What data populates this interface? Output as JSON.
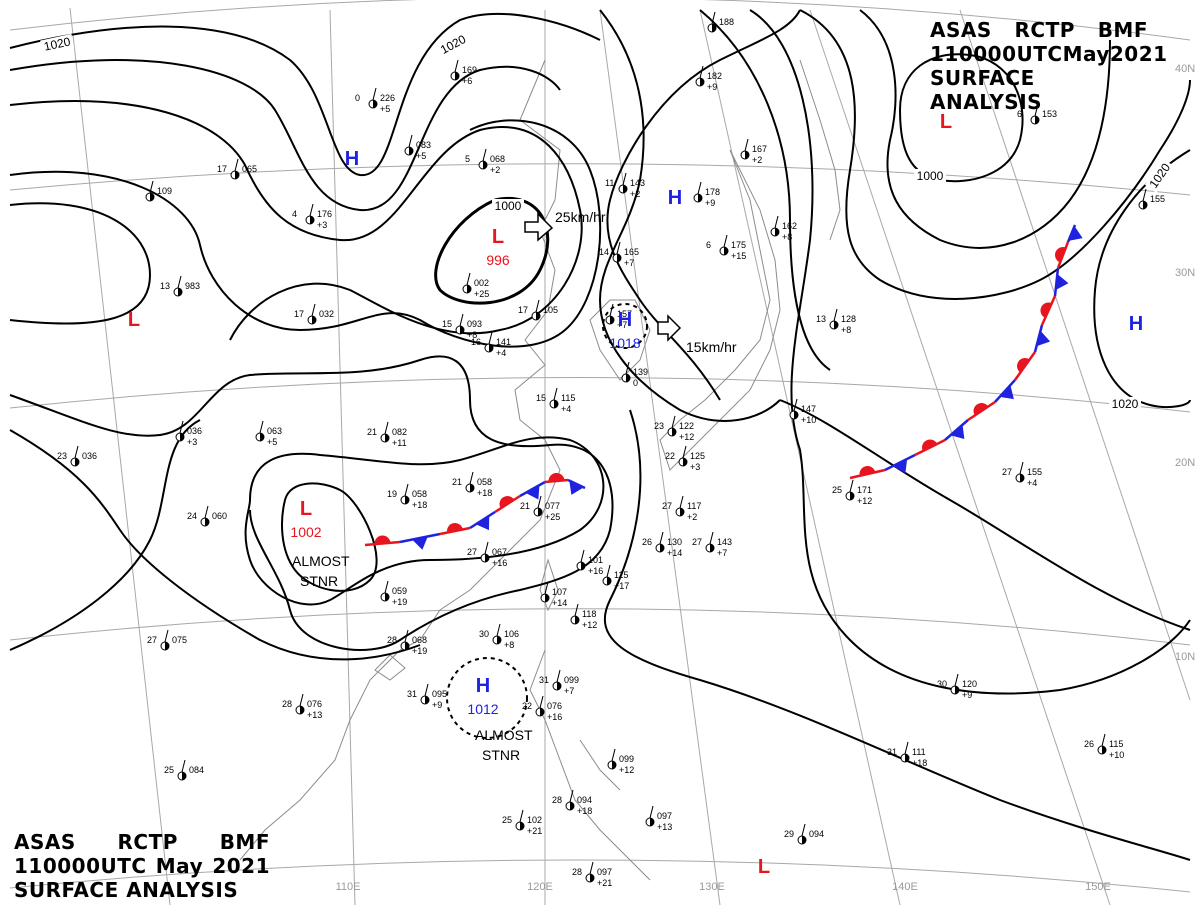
{
  "title": {
    "line1": [
      "ASAS",
      "RCTP",
      "BMF"
    ],
    "line2": [
      "110000UTC",
      "May",
      "2021"
    ],
    "line3": "SURFACE ANALYSIS"
  },
  "colors": {
    "high": "#1f23e0",
    "low": "#e8141e",
    "warm_front": "#e8141e",
    "cold_front": "#1f23e0",
    "isobar": "#000000",
    "grid": "#a8a8a8",
    "coast": "#8c8c8c"
  },
  "lon_labels": [
    "110E",
    "120E",
    "130E",
    "140E",
    "150E"
  ],
  "lat_labels": [
    "40N",
    "30N",
    "20N",
    "10N"
  ],
  "isobar_labels": [
    "1020",
    "1020",
    "1000",
    "1000",
    "1020",
    "1020"
  ],
  "pressure_systems": [
    {
      "type": "H",
      "value": ""
    },
    {
      "type": "H",
      "value": ""
    },
    {
      "type": "H",
      "value": "1018"
    },
    {
      "type": "H",
      "value": ""
    },
    {
      "type": "H",
      "value": "1012"
    },
    {
      "type": "L",
      "value": "996"
    },
    {
      "type": "L",
      "value": ""
    },
    {
      "type": "L",
      "value": "1002"
    },
    {
      "type": "L",
      "value": ""
    },
    {
      "type": "L",
      "value": ""
    }
  ],
  "annotations": {
    "motion_low": "25km/hr",
    "motion_high": "15km/hr",
    "stnr_low": [
      "ALMOST",
      "STNR"
    ],
    "stnr_high": [
      "ALMOST",
      "STNR"
    ]
  },
  "stations": [
    {
      "t": "226",
      "b": "+5",
      "l": "0"
    },
    {
      "t": "169",
      "b": "+6",
      "l": ""
    },
    {
      "t": "083",
      "b": "+5",
      "l": ""
    },
    {
      "t": "068",
      "b": "+2",
      "l": "5"
    },
    {
      "t": "176",
      "b": "+3",
      "l": "4"
    },
    {
      "t": "109",
      "b": "",
      "l": ""
    },
    {
      "t": "065",
      "b": "",
      "l": "17"
    },
    {
      "t": "983",
      "b": "",
      "l": "13"
    },
    {
      "t": "032",
      "b": "",
      "l": "17"
    },
    {
      "t": "002",
      "b": "+25",
      "l": ""
    },
    {
      "t": "093",
      "b": "+8",
      "l": "15"
    },
    {
      "t": "105",
      "b": "",
      "l": "17"
    },
    {
      "t": "141",
      "b": "+4",
      "l": "16"
    },
    {
      "t": "143",
      "b": "+2",
      "l": "11"
    },
    {
      "t": "178",
      "b": "+9",
      "l": ""
    },
    {
      "t": "175",
      "b": "+15",
      "l": "6"
    },
    {
      "t": "162",
      "b": "+8",
      "l": ""
    },
    {
      "t": "167",
      "b": "+2",
      "l": ""
    },
    {
      "t": "182",
      "b": "+9",
      "l": ""
    },
    {
      "t": "188",
      "b": "",
      "l": ""
    },
    {
      "t": "153",
      "b": "",
      "l": "6"
    },
    {
      "t": "155",
      "b": "",
      "l": ""
    },
    {
      "t": "128",
      "b": "+8",
      "l": "13"
    },
    {
      "t": "147",
      "b": "+10",
      "l": ""
    },
    {
      "t": "139",
      "b": "0",
      "l": ""
    },
    {
      "t": "157",
      "b": "+7",
      "l": ""
    },
    {
      "t": "165",
      "b": "+7",
      "l": "14"
    },
    {
      "t": "036",
      "b": "+3",
      "l": ""
    },
    {
      "t": "036",
      "b": "",
      "l": "23"
    },
    {
      "t": "063",
      "b": "+5",
      "l": ""
    },
    {
      "t": "082",
      "b": "+11",
      "l": "21"
    },
    {
      "t": "058",
      "b": "+18",
      "l": "21"
    },
    {
      "t": "058",
      "b": "+18",
      "l": "19"
    },
    {
      "t": "077",
      "b": "+25",
      "l": "21"
    },
    {
      "t": "115",
      "b": "+4",
      "l": "15"
    },
    {
      "t": "067",
      "b": "+16",
      "l": "27"
    },
    {
      "t": "060",
      "b": "",
      "l": "24"
    },
    {
      "t": "059",
      "b": "+19",
      "l": ""
    },
    {
      "t": "068",
      "b": "+19",
      "l": "28"
    },
    {
      "t": "075",
      "b": "",
      "l": "27"
    },
    {
      "t": "076",
      "b": "+13",
      "l": "28"
    },
    {
      "t": "095",
      "b": "+9",
      "l": "31"
    },
    {
      "t": "106",
      "b": "+8",
      "l": "30"
    },
    {
      "t": "107",
      "b": "+14",
      "l": ""
    },
    {
      "t": "101",
      "b": "+16",
      "l": ""
    },
    {
      "t": "118",
      "b": "+12",
      "l": ""
    },
    {
      "t": "115",
      "b": "+17",
      "l": ""
    },
    {
      "t": "130",
      "b": "+14",
      "l": "26"
    },
    {
      "t": "143",
      "b": "+7",
      "l": "27"
    },
    {
      "t": "117",
      "b": "+2",
      "l": "27"
    },
    {
      "t": "125",
      "b": "+3",
      "l": "22"
    },
    {
      "t": "122",
      "b": "+12",
      "l": "23"
    },
    {
      "t": "099",
      "b": "+7",
      "l": "31"
    },
    {
      "t": "076",
      "b": "+16",
      "l": "22"
    },
    {
      "t": "099",
      "b": "+12",
      "l": ""
    },
    {
      "t": "094",
      "b": "+18",
      "l": "28"
    },
    {
      "t": "102",
      "b": "+21",
      "l": "25"
    },
    {
      "t": "097",
      "b": "+21",
      "l": "28"
    },
    {
      "t": "097",
      "b": "+13",
      "l": ""
    },
    {
      "t": "084",
      "b": "",
      "l": "25"
    },
    {
      "t": "171",
      "b": "+12",
      "l": "25"
    },
    {
      "t": "155",
      "b": "+4",
      "l": "27"
    },
    {
      "t": "120",
      "b": "+9",
      "l": "30"
    },
    {
      "t": "111",
      "b": "+18",
      "l": "31"
    },
    {
      "t": "115",
      "b": "+10",
      "l": "26"
    },
    {
      "t": "094",
      "b": "",
      "l": "29"
    }
  ]
}
